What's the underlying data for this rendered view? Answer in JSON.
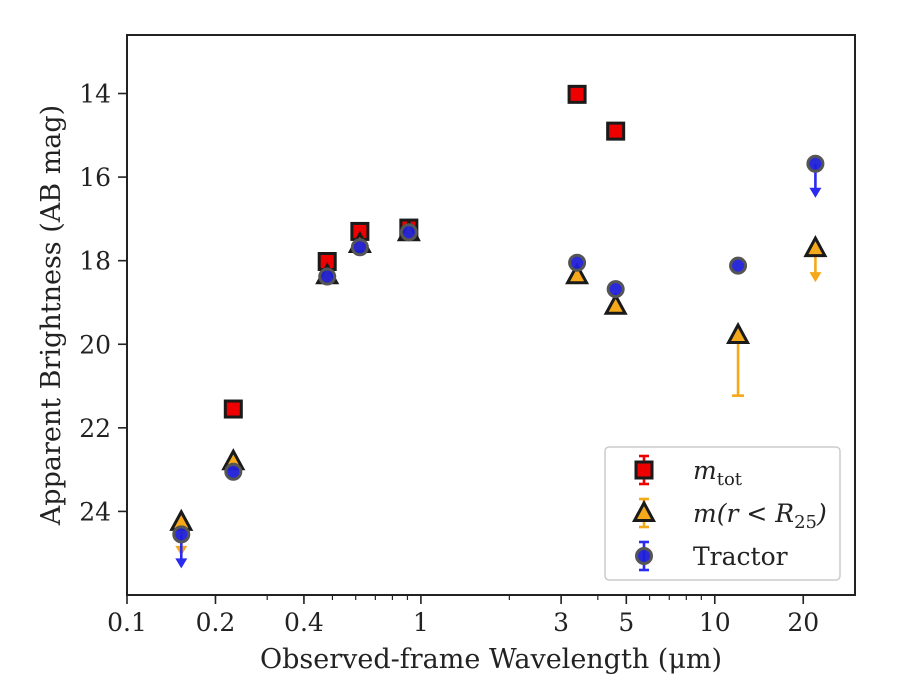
{
  "chart_data": {
    "type": "scatter",
    "xlabel": "Observed-frame Wavelength (μm)",
    "ylabel": "Apparent Brightness (AB mag)",
    "xscale": "log",
    "xlim": [
      0.1,
      30
    ],
    "ylim": [
      26,
      12.6
    ],
    "y_inverted": true,
    "grid": false,
    "legend_position": "lower-right",
    "x_ticks": [
      {
        "value": 0.1,
        "label": "0.1"
      },
      {
        "value": 0.2,
        "label": "0.2"
      },
      {
        "value": 0.4,
        "label": "0.4"
      },
      {
        "value": 1,
        "label": "1"
      },
      {
        "value": 3,
        "label": "3"
      },
      {
        "value": 5,
        "label": "5"
      },
      {
        "value": 10,
        "label": "10"
      },
      {
        "value": 20,
        "label": "20"
      }
    ],
    "y_ticks": [
      {
        "value": 14,
        "label": "14"
      },
      {
        "value": 16,
        "label": "16"
      },
      {
        "value": 18,
        "label": "18"
      },
      {
        "value": 20,
        "label": "20"
      },
      {
        "value": 22,
        "label": "22"
      },
      {
        "value": 24,
        "label": "24"
      }
    ],
    "series": [
      {
        "name_prefix": "m",
        "name_sub": "tot",
        "marker": "square",
        "color": "#ee0000",
        "errorbar_color": "#ee0000",
        "points": [
          {
            "x": 0.23,
            "y": 21.55
          },
          {
            "x": 0.48,
            "y": 18.02
          },
          {
            "x": 0.62,
            "y": 17.3
          },
          {
            "x": 0.91,
            "y": 17.22
          },
          {
            "x": 3.4,
            "y": 14.02
          },
          {
            "x": 4.6,
            "y": 14.9
          }
        ]
      },
      {
        "name_prefix": "m(r < R",
        "name_sub": "25",
        "name_suffix": ")",
        "marker": "triangle",
        "color": "#f5a81a",
        "errorbar_color": "#f5a81a",
        "points": [
          {
            "x": 0.153,
            "y": 24.25,
            "upper_limit": true
          },
          {
            "x": 0.23,
            "y": 22.8
          },
          {
            "x": 0.48,
            "y": 18.35
          },
          {
            "x": 0.62,
            "y": 17.6
          },
          {
            "x": 0.91,
            "y": 17.32
          },
          {
            "x": 3.4,
            "y": 18.35
          },
          {
            "x": 4.6,
            "y": 19.08
          },
          {
            "x": 12.0,
            "y": 19.78,
            "err_low": 1.45
          },
          {
            "x": 22.0,
            "y": 17.7,
            "upper_limit": true
          }
        ]
      },
      {
        "name": "Tractor",
        "marker": "circle",
        "color": "#1f1fd8",
        "errorbar_color": "#2a2af0",
        "points": [
          {
            "x": 0.153,
            "y": 24.55,
            "upper_limit": true
          },
          {
            "x": 0.23,
            "y": 23.05
          },
          {
            "x": 0.48,
            "y": 18.38
          },
          {
            "x": 0.62,
            "y": 17.68
          },
          {
            "x": 0.91,
            "y": 17.32
          },
          {
            "x": 3.4,
            "y": 18.05
          },
          {
            "x": 4.6,
            "y": 18.68
          },
          {
            "x": 12.0,
            "y": 18.12
          },
          {
            "x": 22.0,
            "y": 15.68,
            "upper_limit": true
          }
        ]
      }
    ]
  }
}
